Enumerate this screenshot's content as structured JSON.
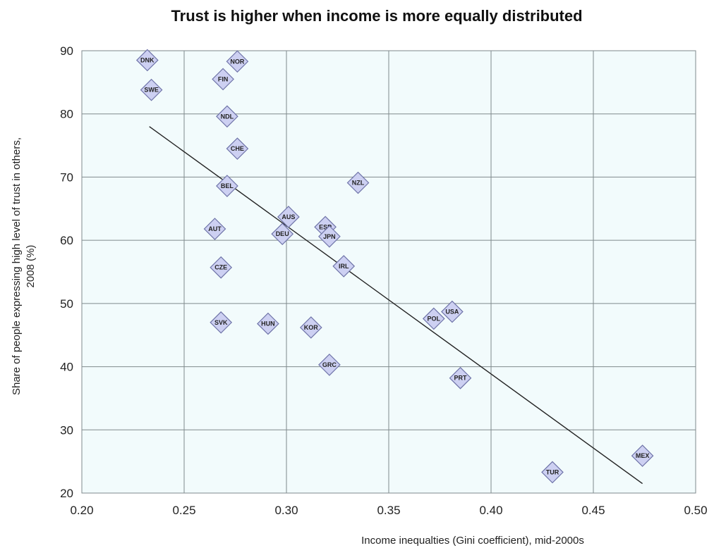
{
  "chart_data": {
    "type": "scatter",
    "title": "Trust is higher when income is more equally distributed",
    "xlabel": "Income inequalties (Gini coefficient), mid-2000s",
    "ylabel_lines": [
      "Share of people expressing high level of trust  in others,",
      "2008 (%)"
    ],
    "xlim": [
      0.2,
      0.5
    ],
    "ylim": [
      20,
      90
    ],
    "x_ticks": [
      0.2,
      0.25,
      0.3,
      0.35,
      0.4,
      0.45,
      0.5
    ],
    "x_tick_labels": [
      "0.20",
      "0.25",
      "0.30",
      "0.35",
      "0.40",
      "0.45",
      "0.50"
    ],
    "y_ticks": [
      20,
      30,
      40,
      50,
      60,
      70,
      80,
      90
    ],
    "y_tick_labels": [
      "20",
      "30",
      "40",
      "50",
      "60",
      "70",
      "80",
      "90"
    ],
    "grid": true,
    "trendline": {
      "x": [
        0.233,
        0.474
      ],
      "y": [
        78,
        21.5
      ]
    },
    "points": [
      {
        "label": "DNK",
        "x": 0.232,
        "y": 88.5
      },
      {
        "label": "SWE",
        "x": 0.234,
        "y": 83.8
      },
      {
        "label": "NOR",
        "x": 0.276,
        "y": 88.3
      },
      {
        "label": "FIN",
        "x": 0.269,
        "y": 85.5
      },
      {
        "label": "NDL",
        "x": 0.271,
        "y": 79.6
      },
      {
        "label": "CHE",
        "x": 0.276,
        "y": 74.5
      },
      {
        "label": "BEL",
        "x": 0.271,
        "y": 68.6
      },
      {
        "label": "NZL",
        "x": 0.335,
        "y": 69.1
      },
      {
        "label": "AUS",
        "x": 0.301,
        "y": 63.7
      },
      {
        "label": "AUT",
        "x": 0.265,
        "y": 61.8
      },
      {
        "label": "DEU",
        "x": 0.298,
        "y": 61.0
      },
      {
        "label": "ESP",
        "x": 0.319,
        "y": 62.1
      },
      {
        "label": "JPN",
        "x": 0.321,
        "y": 60.6
      },
      {
        "label": "CZE",
        "x": 0.268,
        "y": 55.7
      },
      {
        "label": "IRL",
        "x": 0.328,
        "y": 55.9
      },
      {
        "label": "SVK",
        "x": 0.268,
        "y": 47.0
      },
      {
        "label": "HUN",
        "x": 0.291,
        "y": 46.8
      },
      {
        "label": "KOR",
        "x": 0.312,
        "y": 46.2
      },
      {
        "label": "GRC",
        "x": 0.321,
        "y": 40.3
      },
      {
        "label": "POL",
        "x": 0.372,
        "y": 47.6
      },
      {
        "label": "USA",
        "x": 0.381,
        "y": 48.7
      },
      {
        "label": "PRT",
        "x": 0.385,
        "y": 38.2
      },
      {
        "label": "TUR",
        "x": 0.43,
        "y": 23.3
      },
      {
        "label": "MEX",
        "x": 0.474,
        "y": 25.9
      }
    ],
    "colors": {
      "plot_bg": "#f2fbfc",
      "grid": "#7f8a8c",
      "marker_fill": "#cdd0f2",
      "marker_stroke": "#6f74a8",
      "trendline": "#222222"
    }
  }
}
